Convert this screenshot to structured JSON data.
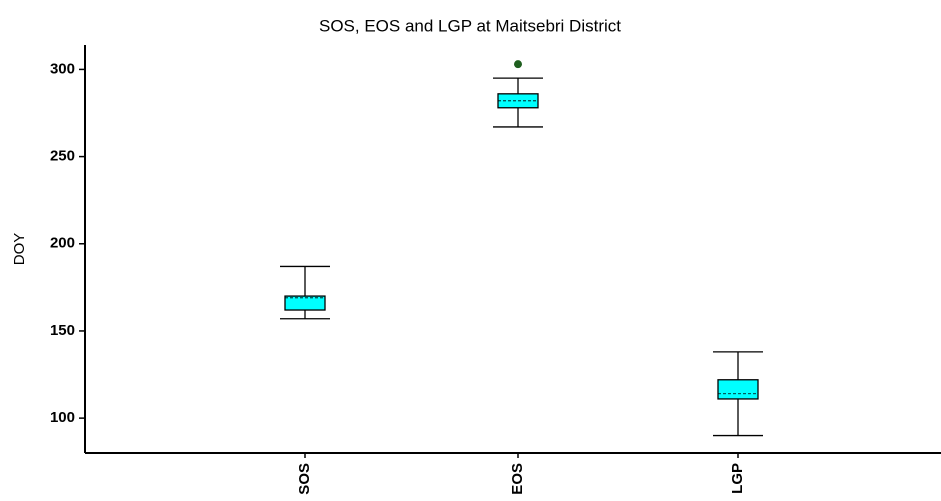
{
  "chart_data": {
    "type": "box",
    "title": "SOS, EOS and LGP at Maitsebri District",
    "y_label": "DOY",
    "categories": [
      "SOS",
      "EOS",
      "LGP"
    ],
    "min": [
      157,
      267,
      90
    ],
    "q1": [
      162,
      278,
      111
    ],
    "median": [
      169,
      282,
      114
    ],
    "q3": [
      170,
      286,
      122
    ],
    "max": [
      187,
      295,
      138
    ],
    "outliers": [
      [],
      [
        303
      ],
      []
    ],
    "color": "#00ffff",
    "outlier_color": "#1f5f1f",
    "ylim": [
      80,
      314
    ],
    "yticks": [
      100,
      150,
      200,
      250,
      300
    ]
  }
}
